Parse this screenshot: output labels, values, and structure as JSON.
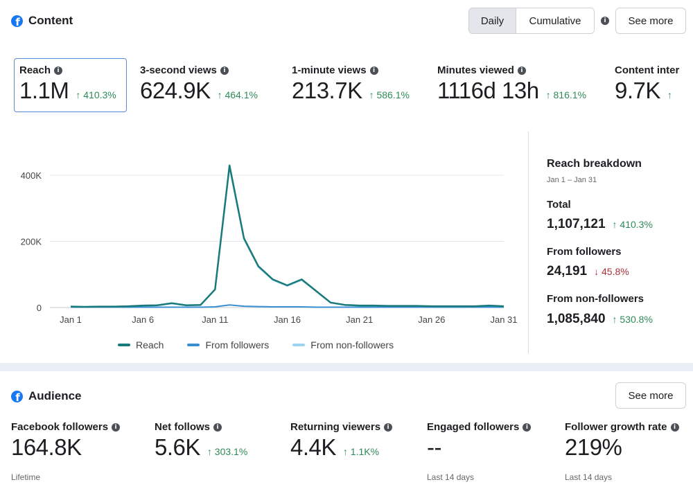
{
  "content": {
    "title": "Content",
    "toggle": {
      "daily": "Daily",
      "cumulative": "Cumulative",
      "active": "Daily"
    },
    "see_more": "See more",
    "metrics": [
      {
        "label": "Reach",
        "value": "1.1M",
        "delta": "↑ 410.3%",
        "selected": true
      },
      {
        "label": "3-second views",
        "value": "624.9K",
        "delta": "↑ 464.1%"
      },
      {
        "label": "1-minute views",
        "value": "213.7K",
        "delta": "↑ 586.1%"
      },
      {
        "label": "Minutes viewed",
        "value": "1116d 13h",
        "delta": "↑ 816.1%"
      },
      {
        "label": "Content inter",
        "value": "9.7K",
        "delta": "↑"
      }
    ]
  },
  "chart_data": {
    "type": "line",
    "x": [
      "Jan 1",
      "Jan 2",
      "Jan 3",
      "Jan 4",
      "Jan 5",
      "Jan 6",
      "Jan 7",
      "Jan 8",
      "Jan 9",
      "Jan 10",
      "Jan 11",
      "Jan 12",
      "Jan 13",
      "Jan 14",
      "Jan 15",
      "Jan 16",
      "Jan 17",
      "Jan 18",
      "Jan 19",
      "Jan 20",
      "Jan 21",
      "Jan 22",
      "Jan 23",
      "Jan 24",
      "Jan 25",
      "Jan 26",
      "Jan 27",
      "Jan 28",
      "Jan 29",
      "Jan 30",
      "Jan 31"
    ],
    "x_ticks": [
      "Jan 1",
      "Jan 6",
      "Jan 11",
      "Jan 16",
      "Jan 21",
      "Jan 26",
      "Jan 31"
    ],
    "y_ticks": [
      "0",
      "200K",
      "400K"
    ],
    "ylim": [
      0,
      440000
    ],
    "series": [
      {
        "name": "Reach",
        "color": "#1a7a7a",
        "values": [
          3000,
          2000,
          3000,
          3000,
          4000,
          6000,
          7000,
          13000,
          7000,
          8000,
          55000,
          430000,
          210000,
          125000,
          85000,
          67000,
          85000,
          50000,
          15000,
          8000,
          6000,
          6000,
          5000,
          5000,
          5000,
          4000,
          4000,
          4000,
          4000,
          6000,
          4000
        ]
      },
      {
        "name": "From followers",
        "color": "#3a8fd0",
        "values": [
          1000,
          1000,
          1000,
          1000,
          1000,
          1000,
          1000,
          1000,
          1000,
          1000,
          2000,
          8000,
          4000,
          3000,
          2000,
          2000,
          2000,
          1000,
          1000,
          1000,
          1000,
          1000,
          1000,
          1000,
          1000,
          1000,
          1000,
          1000,
          1000,
          1000,
          1000
        ]
      },
      {
        "name": "From non-followers",
        "color": "#9fd3f2",
        "values": [
          2000,
          1000,
          2000,
          2000,
          3000,
          5000,
          6000,
          12000,
          6000,
          7000,
          53000,
          422000,
          206000,
          122000,
          83000,
          65000,
          83000,
          49000,
          14000,
          7000,
          5000,
          5000,
          4000,
          4000,
          4000,
          3000,
          3000,
          3000,
          3000,
          5000,
          3000
        ]
      }
    ]
  },
  "breakdown": {
    "title": "Reach breakdown",
    "range": "Jan 1 – Jan 31",
    "total_label": "Total",
    "total_value": "1,107,121",
    "total_delta": "↑ 410.3%",
    "followers_label": "From followers",
    "followers_value": "24,191",
    "followers_delta": "↓ 45.8%",
    "nonfollowers_label": "From non-followers",
    "nonfollowers_value": "1,085,840",
    "nonfollowers_delta": "↑ 530.8%"
  },
  "audience": {
    "title": "Audience",
    "see_more": "See more",
    "metrics": [
      {
        "label": "Facebook followers",
        "value": "164.8K",
        "delta": "",
        "sub": "Lifetime"
      },
      {
        "label": "Net follows",
        "value": "5.6K",
        "delta": "↑ 303.1%",
        "sub": ""
      },
      {
        "label": "Returning viewers",
        "value": "4.4K",
        "delta": "↑ 1.1K%",
        "sub": ""
      },
      {
        "label": "Engaged followers",
        "value": "--",
        "delta": "",
        "sub": "Last 14 days"
      },
      {
        "label": "Follower growth rate",
        "value": "219%",
        "delta": "",
        "sub": "Last 14 days"
      }
    ]
  }
}
